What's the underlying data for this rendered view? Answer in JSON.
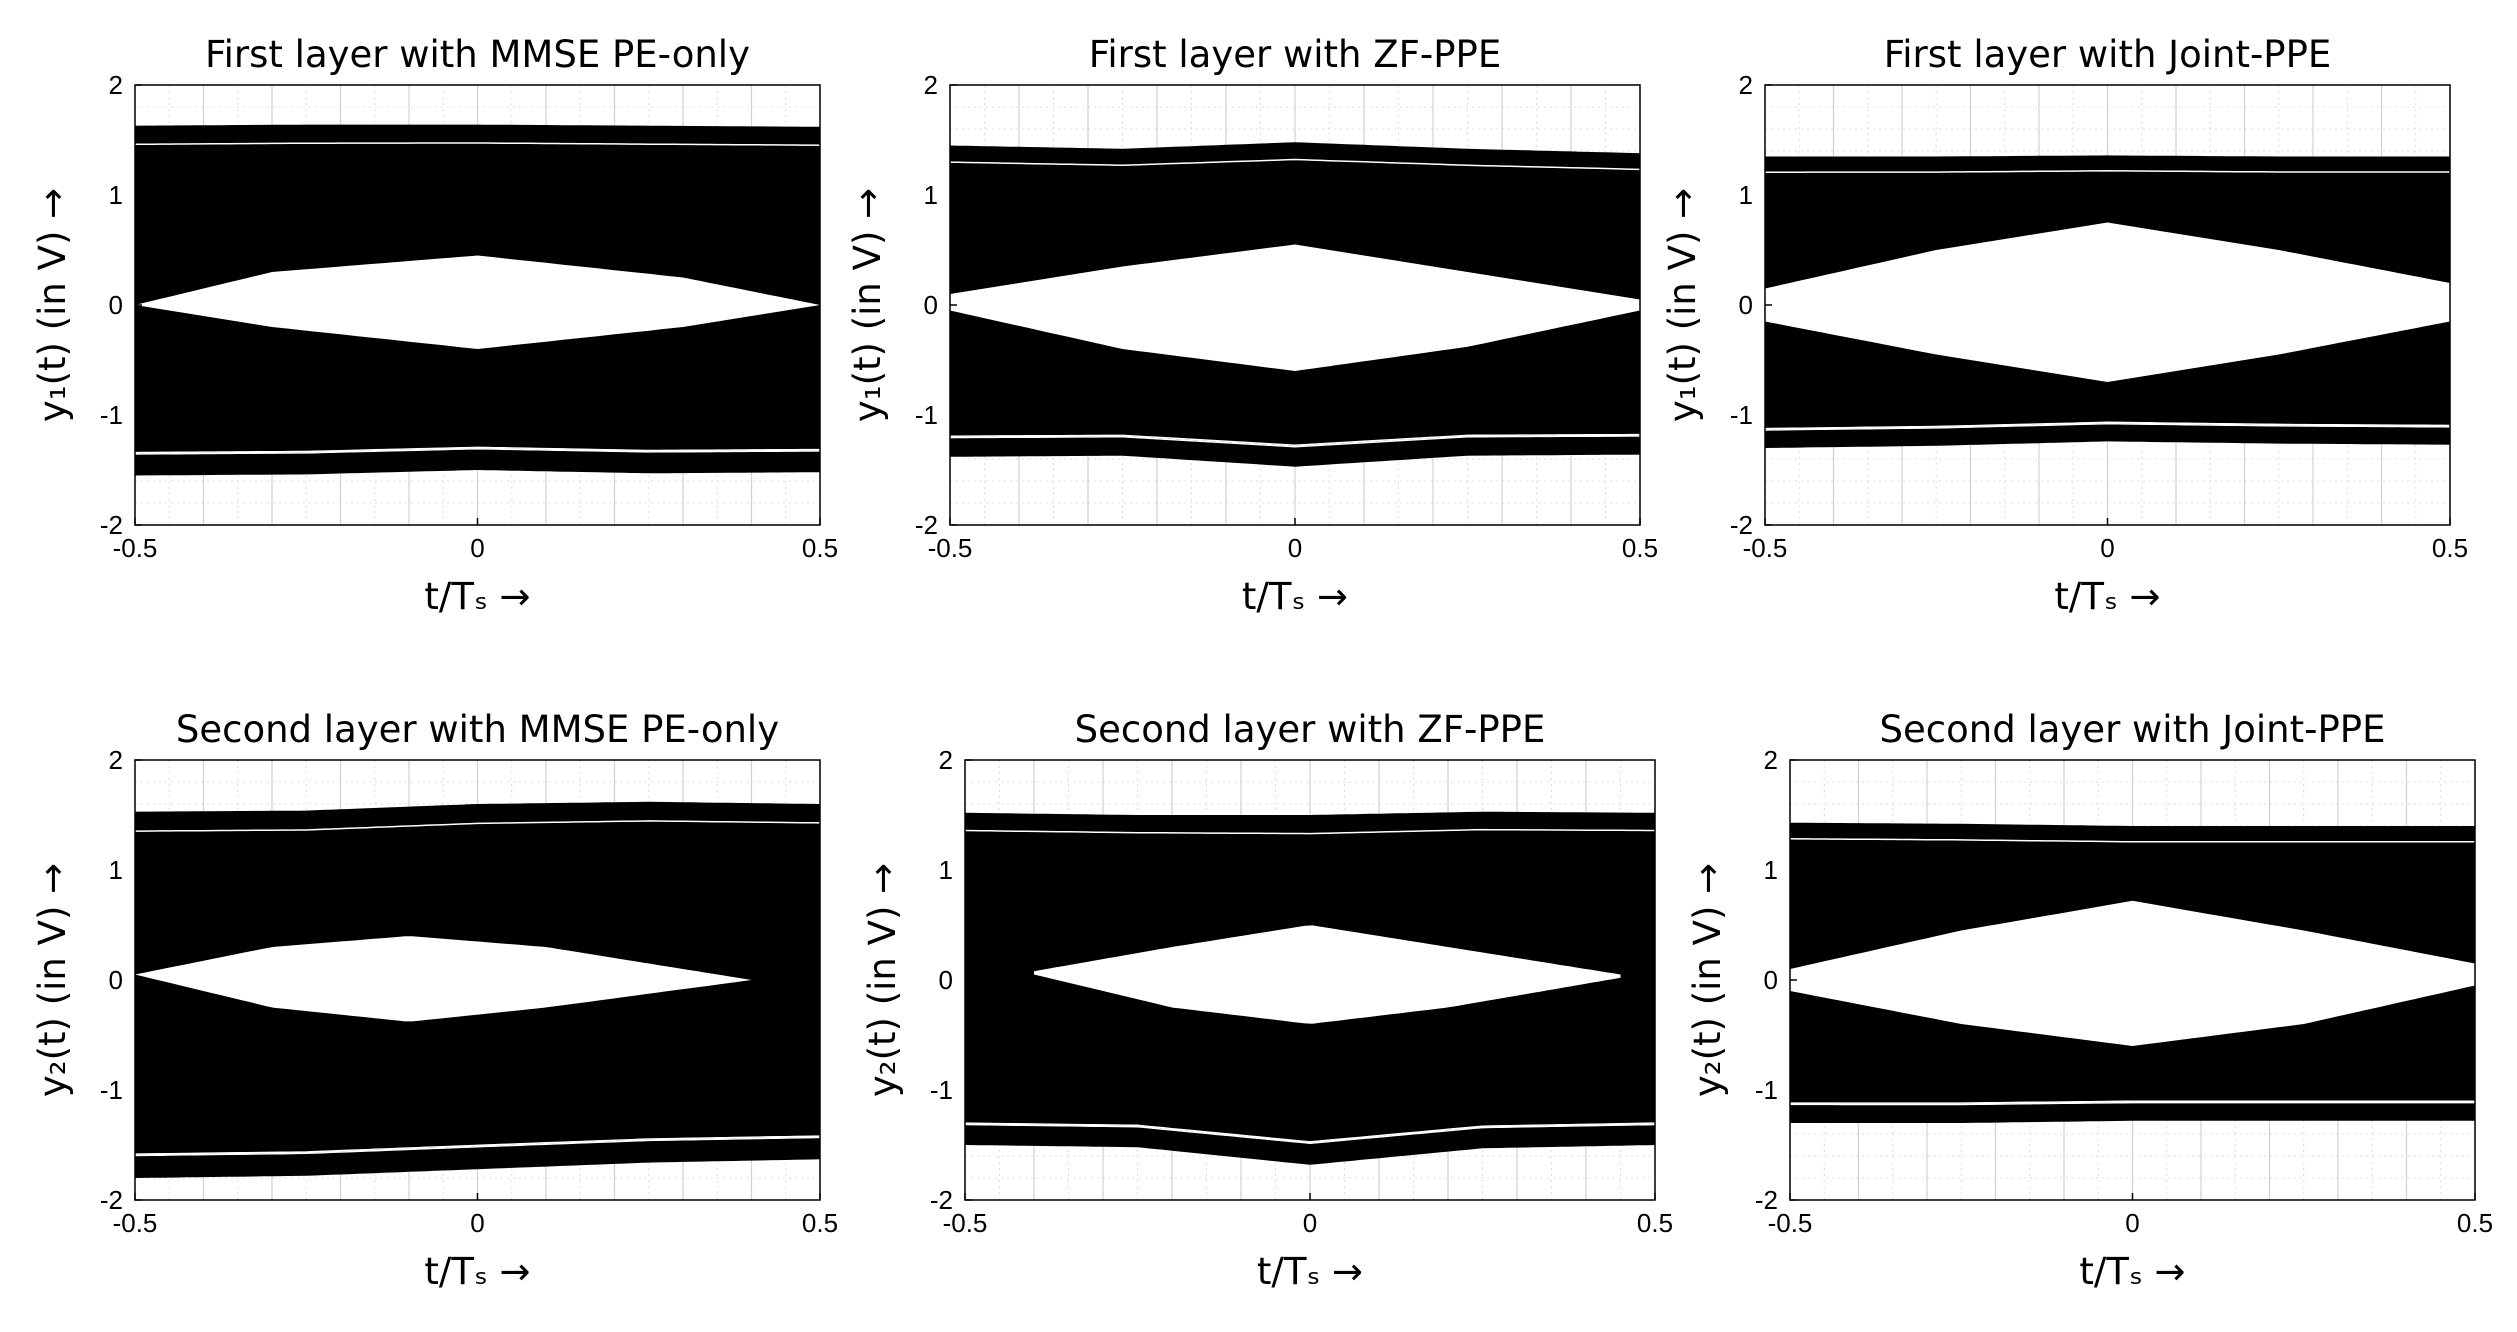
{
  "chart_data": [
    {
      "type": "line",
      "title": "First layer with MMSE PE-only",
      "xlabel": "t/Tₛ →",
      "ylabel": "y₁(t) (in V) →",
      "xlim": [
        -0.5,
        0.5
      ],
      "ylim": [
        -2,
        2
      ],
      "xticks": [
        -0.5,
        0,
        0.5
      ],
      "xtick_labels": [
        "-0.5",
        "0",
        "0.5"
      ],
      "yticks": [
        -2,
        -1,
        0,
        1,
        2
      ],
      "ytick_labels": [
        "-2",
        "-1",
        "0",
        "1",
        "2"
      ],
      "grid": true,
      "series": [
        {
          "name": "eye band",
          "x": [
            -0.5,
            -0.25,
            0,
            0.25,
            0.5
          ],
          "upper": [
            1.63,
            1.64,
            1.64,
            1.63,
            1.62
          ],
          "lower": [
            -1.55,
            -1.54,
            -1.5,
            -1.53,
            -1.52
          ]
        },
        {
          "name": "eye opening",
          "x": [
            -0.5,
            -0.3,
            0,
            0.3,
            0.5
          ],
          "upper": [
            0,
            0.3,
            0.45,
            0.25,
            0
          ],
          "lower": [
            0,
            -0.2,
            -0.4,
            -0.2,
            0
          ]
        }
      ]
    },
    {
      "type": "line",
      "title": "First layer with ZF-PPE",
      "xlabel": "t/Tₛ →",
      "ylabel": "y₁(t) (in V) →",
      "xlim": [
        -0.5,
        0.5
      ],
      "ylim": [
        -2,
        2
      ],
      "xticks": [
        -0.5,
        0,
        0.5
      ],
      "xtick_labels": [
        "-0.5",
        "0",
        "0.5"
      ],
      "yticks": [
        -2,
        -1,
        0,
        1,
        2
      ],
      "ytick_labels": [
        "-2",
        "-1",
        "0",
        "1",
        "2"
      ],
      "grid": true,
      "series": [
        {
          "name": "eye band",
          "x": [
            -0.5,
            -0.25,
            0,
            0.25,
            0.5
          ],
          "upper": [
            1.45,
            1.42,
            1.48,
            1.42,
            1.38
          ],
          "lower": [
            -1.38,
            -1.37,
            -1.47,
            -1.37,
            -1.36
          ]
        },
        {
          "name": "eye opening",
          "x": [
            -0.5,
            -0.25,
            0,
            0.25,
            0.5
          ],
          "upper": [
            0.1,
            0.35,
            0.55,
            0.3,
            0.05
          ],
          "lower": [
            -0.05,
            -0.4,
            -0.6,
            -0.38,
            -0.05
          ]
        }
      ]
    },
    {
      "type": "line",
      "title": "First layer with Joint-PPE",
      "xlabel": "t/Tₛ →",
      "ylabel": "y₁(t) (in V) →",
      "xlim": [
        -0.5,
        0.5
      ],
      "ylim": [
        -2,
        2
      ],
      "xticks": [
        -0.5,
        0,
        0.5
      ],
      "xtick_labels": [
        "-0.5",
        "0",
        "0.5"
      ],
      "yticks": [
        -2,
        -1,
        0,
        1,
        2
      ],
      "ytick_labels": [
        "-2",
        "-1",
        "0",
        "1",
        "2"
      ],
      "grid": true,
      "series": [
        {
          "name": "eye band",
          "x": [
            -0.5,
            -0.25,
            0,
            0.25,
            0.5
          ],
          "upper": [
            1.35,
            1.35,
            1.36,
            1.35,
            1.35
          ],
          "lower": [
            -1.3,
            -1.28,
            -1.24,
            -1.26,
            -1.27
          ]
        },
        {
          "name": "eye opening",
          "x": [
            -0.5,
            -0.25,
            0,
            0.25,
            0.5
          ],
          "upper": [
            0.15,
            0.5,
            0.75,
            0.5,
            0.2
          ],
          "lower": [
            -0.15,
            -0.45,
            -0.7,
            -0.45,
            -0.15
          ]
        }
      ]
    },
    {
      "type": "line",
      "title": "Second layer with MMSE PE-only",
      "xlabel": "t/Tₛ →",
      "ylabel": "y₂(t) (in V) →",
      "xlim": [
        -0.5,
        0.5
      ],
      "ylim": [
        -2,
        2
      ],
      "xticks": [
        -0.5,
        0,
        0.5
      ],
      "xtick_labels": [
        "-0.5",
        "0",
        "0.5"
      ],
      "yticks": [
        -2,
        -1,
        0,
        1,
        2
      ],
      "ytick_labels": [
        "-2",
        "-1",
        "0",
        "1",
        "2"
      ],
      "grid": true,
      "series": [
        {
          "name": "eye band",
          "x": [
            -0.5,
            -0.25,
            0,
            0.25,
            0.5
          ],
          "upper": [
            1.53,
            1.54,
            1.6,
            1.62,
            1.6
          ],
          "lower": [
            -1.8,
            -1.78,
            -1.72,
            -1.66,
            -1.63
          ]
        },
        {
          "name": "eye opening",
          "x": [
            -0.5,
            -0.3,
            -0.1,
            0.1,
            0.4
          ],
          "upper": [
            0.05,
            0.3,
            0.4,
            0.3,
            0
          ],
          "lower": [
            0.05,
            -0.25,
            -0.38,
            -0.25,
            0
          ]
        }
      ]
    },
    {
      "type": "line",
      "title": "Second layer with ZF-PPE",
      "xlabel": "t/Tₛ →",
      "ylabel": "y₂(t) (in V) →",
      "xlim": [
        -0.5,
        0.5
      ],
      "ylim": [
        -2,
        2
      ],
      "xticks": [
        -0.5,
        0,
        0.5
      ],
      "xtick_labels": [
        "-0.5",
        "0",
        "0.5"
      ],
      "yticks": [
        -2,
        -1,
        0,
        1,
        2
      ],
      "ytick_labels": [
        "-2",
        "-1",
        "0",
        "1",
        "2"
      ],
      "grid": true,
      "series": [
        {
          "name": "eye band",
          "x": [
            -0.5,
            -0.25,
            0,
            0.25,
            0.5
          ],
          "upper": [
            1.52,
            1.5,
            1.5,
            1.53,
            1.52
          ],
          "lower": [
            -1.5,
            -1.52,
            -1.68,
            -1.53,
            -1.5
          ]
        },
        {
          "name": "eye opening",
          "x": [
            -0.4,
            -0.2,
            0,
            0.2,
            0.45
          ],
          "upper": [
            0.08,
            0.3,
            0.5,
            0.3,
            0.05
          ],
          "lower": [
            0.05,
            -0.25,
            -0.4,
            -0.25,
            0.02
          ]
        }
      ]
    },
    {
      "type": "line",
      "title": "Second layer with Joint-PPE",
      "xlabel": "t/Tₛ →",
      "ylabel": "y₂(t) (in V) →",
      "xlim": [
        -0.5,
        0.5
      ],
      "ylim": [
        -2,
        2
      ],
      "xticks": [
        -0.5,
        0,
        0.5
      ],
      "xtick_labels": [
        "-0.5",
        "0",
        "0.5"
      ],
      "yticks": [
        -2,
        -1,
        0,
        1,
        2
      ],
      "ytick_labels": [
        "-2",
        "-1",
        "0",
        "1",
        "2"
      ],
      "grid": true,
      "series": [
        {
          "name": "eye band",
          "x": [
            -0.5,
            -0.25,
            0,
            0.25,
            0.5
          ],
          "upper": [
            1.43,
            1.42,
            1.4,
            1.4,
            1.4
          ],
          "lower": [
            -1.3,
            -1.3,
            -1.28,
            -1.28,
            -1.28
          ]
        },
        {
          "name": "eye opening",
          "x": [
            -0.5,
            -0.25,
            0,
            0.25,
            0.5
          ],
          "upper": [
            0.1,
            0.45,
            0.72,
            0.45,
            0.15
          ],
          "lower": [
            -0.1,
            -0.4,
            -0.6,
            -0.4,
            -0.05
          ]
        }
      ]
    }
  ]
}
